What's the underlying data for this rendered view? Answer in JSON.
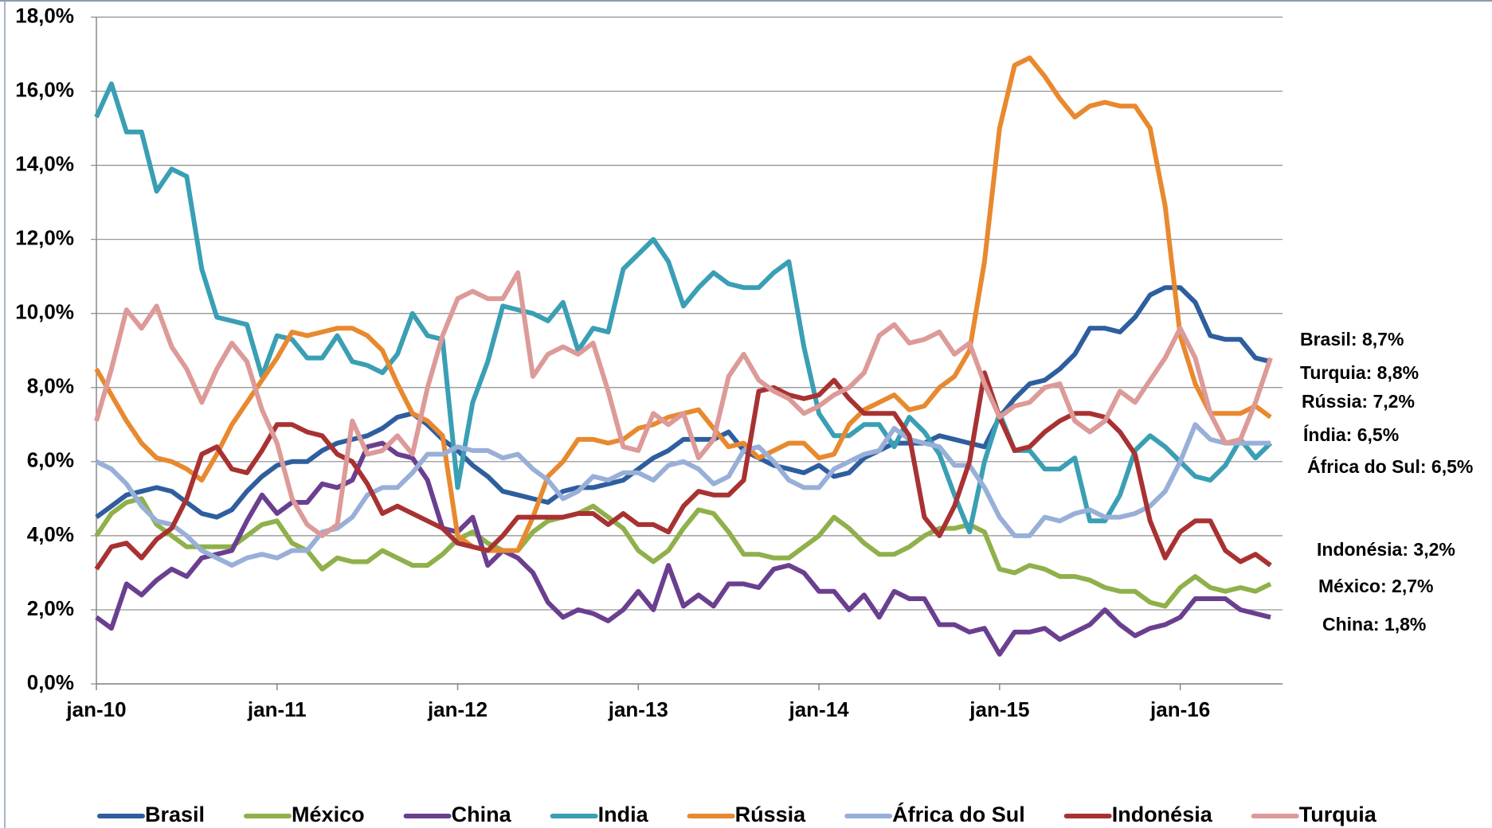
{
  "chart_data": {
    "type": "line",
    "categories": [
      "jan-10",
      null,
      null,
      null,
      null,
      null,
      null,
      null,
      null,
      null,
      null,
      null,
      "jan-11",
      null,
      null,
      null,
      null,
      null,
      null,
      null,
      null,
      null,
      null,
      null,
      "jan-12",
      null,
      null,
      null,
      null,
      null,
      null,
      null,
      null,
      null,
      null,
      null,
      "jan-13",
      null,
      null,
      null,
      null,
      null,
      null,
      null,
      null,
      null,
      null,
      null,
      "jan-14",
      null,
      null,
      null,
      null,
      null,
      null,
      null,
      null,
      null,
      null,
      null,
      "jan-15",
      null,
      null,
      null,
      null,
      null,
      null,
      null,
      null,
      null,
      null,
      null,
      "jan-16",
      null,
      null,
      null,
      null,
      null,
      null
    ],
    "ylim": [
      0,
      18
    ],
    "yticks": [
      {
        "value": 0,
        "label": "0,0%"
      },
      {
        "value": 2,
        "label": "2,0%"
      },
      {
        "value": 4,
        "label": "4,0%"
      },
      {
        "value": 6,
        "label": "6,0%"
      },
      {
        "value": 8,
        "label": "8,0%"
      },
      {
        "value": 10,
        "label": "10,0%"
      },
      {
        "value": 12,
        "label": "12,0%"
      },
      {
        "value": 14,
        "label": "14,0%"
      },
      {
        "value": 16,
        "label": "16,0%"
      },
      {
        "value": 18,
        "label": "18,0%"
      }
    ],
    "grid": true,
    "legend": "bottom",
    "series": [
      {
        "name": "Brasil",
        "color": "#2e5e9e",
        "values": [
          4.5,
          4.8,
          5.1,
          5.2,
          5.3,
          5.2,
          4.9,
          4.6,
          4.5,
          4.7,
          5.2,
          5.6,
          5.9,
          6.0,
          6.0,
          6.3,
          6.5,
          6.6,
          6.7,
          6.9,
          7.2,
          7.3,
          7.0,
          6.6,
          6.3,
          5.9,
          5.6,
          5.2,
          5.1,
          5.0,
          4.9,
          5.2,
          5.3,
          5.3,
          5.4,
          5.5,
          5.8,
          6.1,
          6.3,
          6.6,
          6.6,
          6.6,
          6.8,
          6.3,
          6.1,
          5.9,
          5.8,
          5.7,
          5.9,
          5.6,
          5.7,
          6.1,
          6.3,
          6.5,
          6.5,
          6.5,
          6.7,
          6.6,
          6.5,
          6.4,
          7.2,
          7.7,
          8.1,
          8.2,
          8.5,
          8.9,
          9.6,
          9.6,
          9.5,
          9.9,
          10.5,
          10.7,
          10.7,
          10.3,
          9.4,
          9.3,
          9.3,
          8.8,
          8.7
        ]
      },
      {
        "name": "México",
        "color": "#8fb04a",
        "values": [
          4.0,
          4.6,
          4.9,
          5.0,
          4.3,
          4.0,
          3.7,
          3.7,
          3.7,
          3.7,
          4.0,
          4.3,
          4.4,
          3.8,
          3.6,
          3.1,
          3.4,
          3.3,
          3.3,
          3.6,
          3.4,
          3.2,
          3.2,
          3.5,
          3.9,
          4.1,
          3.8,
          3.6,
          3.6,
          4.1,
          4.4,
          4.5,
          4.6,
          4.8,
          4.5,
          4.2,
          3.6,
          3.3,
          3.6,
          4.2,
          4.7,
          4.6,
          4.1,
          3.5,
          3.5,
          3.4,
          3.4,
          3.7,
          4.0,
          4.5,
          4.2,
          3.8,
          3.5,
          3.5,
          3.7,
          4.0,
          4.2,
          4.2,
          4.3,
          4.1,
          3.1,
          3.0,
          3.2,
          3.1,
          2.9,
          2.9,
          2.8,
          2.6,
          2.5,
          2.5,
          2.2,
          2.1,
          2.6,
          2.9,
          2.6,
          2.5,
          2.6,
          2.5,
          2.7
        ]
      },
      {
        "name": "China",
        "color": "#6b3f8f",
        "values": [
          1.8,
          1.5,
          2.7,
          2.4,
          2.8,
          3.1,
          2.9,
          3.4,
          3.5,
          3.6,
          4.4,
          5.1,
          4.6,
          4.9,
          4.9,
          5.4,
          5.3,
          5.5,
          6.4,
          6.5,
          6.2,
          6.1,
          5.5,
          4.2,
          4.1,
          4.5,
          3.2,
          3.6,
          3.4,
          3.0,
          2.2,
          1.8,
          2.0,
          1.9,
          1.7,
          2.0,
          2.5,
          2.0,
          3.2,
          2.1,
          2.4,
          2.1,
          2.7,
          2.7,
          2.6,
          3.1,
          3.2,
          3.0,
          2.5,
          2.5,
          2.0,
          2.4,
          1.8,
          2.5,
          2.3,
          2.3,
          1.6,
          1.6,
          1.4,
          1.5,
          0.8,
          1.4,
          1.4,
          1.5,
          1.2,
          1.4,
          1.6,
          2.0,
          1.6,
          1.3,
          1.5,
          1.6,
          1.8,
          2.3,
          2.3,
          2.3,
          2.0,
          1.9,
          1.8
        ]
      },
      {
        "name": "India",
        "color": "#3a9fb4",
        "values": [
          15.3,
          16.2,
          14.9,
          14.9,
          13.3,
          13.9,
          13.7,
          11.2,
          9.9,
          9.8,
          9.7,
          8.3,
          9.4,
          9.3,
          8.8,
          8.8,
          9.4,
          8.7,
          8.6,
          8.4,
          8.9,
          10.0,
          9.4,
          9.3,
          5.3,
          7.6,
          8.7,
          10.2,
          10.1,
          10.0,
          9.8,
          10.3,
          9.0,
          9.6,
          9.5,
          11.2,
          11.6,
          12.0,
          11.4,
          10.2,
          10.7,
          11.1,
          10.8,
          10.7,
          10.7,
          11.1,
          11.4,
          9.1,
          7.3,
          6.7,
          6.7,
          7.0,
          7.0,
          6.4,
          7.2,
          6.8,
          6.2,
          5.1,
          4.1,
          6.0,
          7.3,
          6.3,
          6.3,
          5.8,
          5.8,
          6.1,
          4.4,
          4.4,
          5.1,
          6.3,
          6.7,
          6.4,
          6.0,
          5.6,
          5.5,
          5.9,
          6.6,
          6.1,
          6.5
        ]
      },
      {
        "name": "Rússia",
        "color": "#e8892f",
        "values": [
          8.5,
          7.8,
          7.1,
          6.5,
          6.1,
          6.0,
          5.8,
          5.5,
          6.2,
          7.0,
          7.6,
          8.2,
          8.8,
          9.5,
          9.4,
          9.5,
          9.6,
          9.6,
          9.4,
          9.0,
          8.1,
          7.3,
          7.1,
          6.7,
          4.0,
          3.7,
          3.6,
          3.6,
          3.6,
          4.5,
          5.6,
          6.0,
          6.6,
          6.6,
          6.5,
          6.6,
          6.9,
          7.0,
          7.2,
          7.3,
          7.4,
          6.9,
          6.4,
          6.5,
          6.1,
          6.3,
          6.5,
          6.5,
          6.1,
          6.2,
          7.0,
          7.4,
          7.6,
          7.8,
          7.4,
          7.5,
          8.0,
          8.3,
          9.0,
          11.4,
          15.0,
          16.7,
          16.9,
          16.4,
          15.8,
          15.3,
          15.6,
          15.7,
          15.6,
          15.6,
          15.0,
          12.9,
          9.4,
          8.1,
          7.3,
          7.3,
          7.3,
          7.5,
          7.2
        ]
      },
      {
        "name": "África do Sul",
        "color": "#98afd8",
        "values": [
          6.0,
          5.8,
          5.4,
          4.8,
          4.4,
          4.3,
          4.0,
          3.6,
          3.4,
          3.2,
          3.4,
          3.5,
          3.4,
          3.6,
          3.6,
          4.1,
          4.2,
          4.5,
          5.1,
          5.3,
          5.3,
          5.7,
          6.2,
          6.2,
          6.4,
          6.3,
          6.3,
          6.1,
          6.2,
          5.8,
          5.5,
          5.0,
          5.2,
          5.6,
          5.5,
          5.7,
          5.7,
          5.5,
          5.9,
          6.0,
          5.8,
          5.4,
          5.6,
          6.3,
          6.4,
          6.0,
          5.5,
          5.3,
          5.3,
          5.8,
          6.0,
          6.2,
          6.3,
          6.9,
          6.6,
          6.5,
          6.4,
          5.9,
          5.9,
          5.3,
          4.5,
          4.0,
          4.0,
          4.5,
          4.4,
          4.6,
          4.7,
          4.5,
          4.5,
          4.6,
          4.8,
          5.2,
          6.0,
          7.0,
          6.6,
          6.5,
          6.5,
          6.5,
          6.5
        ]
      },
      {
        "name": "Indonésia",
        "color": "#a83232",
        "values": [
          3.1,
          3.7,
          3.8,
          3.4,
          3.9,
          4.2,
          5.0,
          6.2,
          6.4,
          5.8,
          5.7,
          6.3,
          7.0,
          7.0,
          6.8,
          6.7,
          6.2,
          6.0,
          5.4,
          4.6,
          4.8,
          4.6,
          4.4,
          4.2,
          3.8,
          3.7,
          3.6,
          4.0,
          4.5,
          4.5,
          4.5,
          4.5,
          4.6,
          4.6,
          4.3,
          4.6,
          4.3,
          4.3,
          4.1,
          4.8,
          5.2,
          5.1,
          5.1,
          5.5,
          7.9,
          8.0,
          7.8,
          7.7,
          7.8,
          8.2,
          7.7,
          7.3,
          7.3,
          7.3,
          6.7,
          4.5,
          4.0,
          4.8,
          6.0,
          8.4,
          7.2,
          6.3,
          6.4,
          6.8,
          7.1,
          7.3,
          7.3,
          7.2,
          6.8,
          6.2,
          4.4,
          3.4,
          4.1,
          4.4,
          4.4,
          3.6,
          3.3,
          3.5,
          3.2
        ]
      },
      {
        "name": "Turquia",
        "color": "#dc9a98",
        "values": [
          7.1,
          8.5,
          10.1,
          9.6,
          10.2,
          9.1,
          8.5,
          7.6,
          8.5,
          9.2,
          8.7,
          7.4,
          6.5,
          5.0,
          4.3,
          4.0,
          4.3,
          7.1,
          6.2,
          6.3,
          6.7,
          6.2,
          8.0,
          9.4,
          10.4,
          10.6,
          10.4,
          10.4,
          11.1,
          8.3,
          8.9,
          9.1,
          8.9,
          9.2,
          7.9,
          6.4,
          6.3,
          7.3,
          7.0,
          7.3,
          6.1,
          6.6,
          8.3,
          8.9,
          8.2,
          7.9,
          7.7,
          7.3,
          7.5,
          7.8,
          8.0,
          8.4,
          9.4,
          9.7,
          9.2,
          9.3,
          9.5,
          8.9,
          9.2,
          8.1,
          7.2,
          7.5,
          7.6,
          8.0,
          8.1,
          7.1,
          6.8,
          7.1,
          7.9,
          7.6,
          8.2,
          8.8,
          9.6,
          8.8,
          7.3,
          6.5,
          6.6,
          7.6,
          8.8
        ]
      }
    ],
    "annotations": [
      {
        "text": "Brasil: 8,7%",
        "color": "#2e5e9e"
      },
      {
        "text": "Turquia:  8,8%",
        "color": "#dc9a98"
      },
      {
        "text": "Rússia:  7,2%",
        "color": "#e8892f"
      },
      {
        "text": "Índia: 6,5%",
        "color": "#3a9fb4"
      },
      {
        "text": "África do Sul: 6,5%",
        "color": "#98afd8"
      },
      {
        "text": "Indonésia: 3,2%",
        "color": "#c0504d"
      },
      {
        "text": "México: 2,7%",
        "color": "#77933c"
      },
      {
        "text": "China: 1,8%",
        "color": "#7030a0"
      }
    ]
  }
}
